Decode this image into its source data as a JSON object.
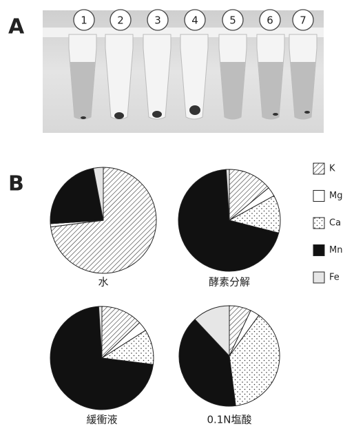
{
  "panel_labels": [
    "A",
    "B"
  ],
  "tubes": [
    "1",
    "2",
    "3",
    "4",
    "5",
    "6",
    "7"
  ],
  "chart_data": [
    {
      "type": "pie",
      "title": "水",
      "categories": [
        "K",
        "Mg",
        "Ca",
        "Mn",
        "Fe"
      ],
      "values": [
        73,
        1,
        0,
        23,
        3
      ]
    },
    {
      "type": "pie",
      "title": "酵素分解",
      "categories": [
        "K",
        "Mg",
        "Ca",
        "Mn",
        "Fe"
      ],
      "values": [
        14,
        3,
        12,
        70,
        1
      ]
    },
    {
      "type": "pie",
      "title": "緩衝液",
      "categories": [
        "K",
        "Mg",
        "Ca",
        "Mn",
        "Fe"
      ],
      "values": [
        13,
        3,
        11,
        72,
        1
      ]
    },
    {
      "type": "pie",
      "title": "0.1N塩酸",
      "categories": [
        "K",
        "Mg",
        "Ca",
        "Mn",
        "Fe"
      ],
      "values": [
        7,
        3,
        38,
        40,
        12
      ]
    }
  ]
}
